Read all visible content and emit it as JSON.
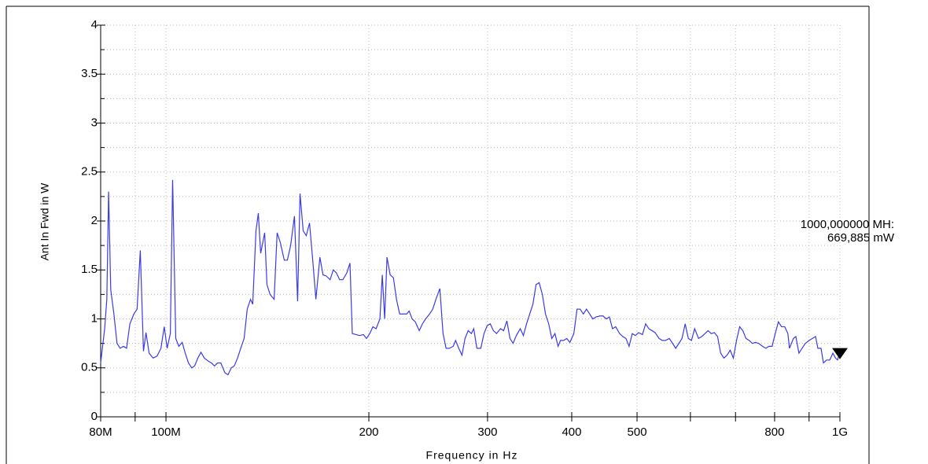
{
  "chart_data": {
    "type": "line",
    "xscale": "log",
    "grid": true,
    "x_label": "Frequency in Hz",
    "y_label": "Ant In Fwd in W",
    "xlim": [
      80,
      1000
    ],
    "ylim": [
      0,
      4
    ],
    "xticks": [
      {
        "value": 80,
        "label": "80M"
      },
      {
        "value": 100,
        "label": "100M"
      },
      200,
      300,
      400,
      500,
      800,
      {
        "value": 1000,
        "label": "1G"
      }
    ],
    "xminorticks": [
      90,
      600,
      700,
      900
    ],
    "yticks": [
      0,
      0.5,
      1,
      1.5,
      2,
      2.5,
      3,
      3.5,
      4
    ],
    "yminorticks": [
      0.25,
      0.75,
      1.25,
      1.75,
      2.25,
      2.75,
      3.25,
      3.75
    ],
    "x": [
      80,
      81.1,
      81.7,
      82.2,
      82.8,
      83.7,
      84.6,
      85.5,
      86.5,
      87.4,
      88.4,
      89.6,
      90.6,
      91.6,
      92.6,
      93.4,
      94.4,
      95.7,
      97.0,
      98.3,
      99.4,
      100.4,
      101.5,
      102.3,
      103.4,
      104.5,
      105.7,
      106.8,
      108.0,
      109.2,
      110.3,
      111.5,
      112.7,
      114.0,
      115.5,
      116.8,
      118.0,
      119.3,
      120.6,
      122.3,
      123.6,
      125.0,
      126.3,
      127.7,
      129.1,
      130.6,
      132.0,
      133.5,
      134.5,
      136.0,
      137.1,
      138.2,
      140.1,
      141.2,
      142.7,
      144.7,
      146.2,
      147.8,
      149.8,
      151.4,
      153.1,
      155.1,
      156.8,
      158.1,
      159.8,
      161.5,
      163.3,
      165.1,
      166.9,
      169.2,
      171.0,
      172.8,
      175.2,
      177.1,
      179.0,
      181.0,
      183.0,
      185.5,
      187.5,
      189.0,
      191.6,
      193.7,
      196.3,
      198.4,
      200.6,
      202.8,
      205.0,
      207.7,
      209.4,
      211.1,
      212.8,
      215.1,
      217.5,
      219.8,
      222.2,
      224.6,
      227.6,
      229.5,
      231.9,
      234.4,
      237.6,
      240.2,
      242.8,
      246.1,
      248.8,
      251.5,
      254.9,
      257.7,
      260.4,
      263.3,
      266.8,
      269.0,
      271.9,
      274.9,
      277.8,
      280.8,
      283.9,
      286.2,
      289.3,
      293.2,
      296.4,
      299.6,
      302.8,
      306.1,
      309.4,
      313.6,
      317.0,
      320.5,
      323.9,
      327.4,
      331.0,
      335.5,
      339.1,
      342.8,
      346.5,
      350.3,
      354.1,
      357.9,
      361.8,
      365.7,
      369.7,
      373.7,
      377.7,
      381.8,
      384.9,
      389.1,
      393.3,
      397.5,
      402.9,
      407.3,
      411.7,
      416.2,
      420.7,
      425.3,
      429.9,
      434.6,
      440.4,
      445.2,
      450.0,
      454.9,
      459.8,
      464.8,
      471.1,
      476.2,
      481.4,
      486.6,
      491.9,
      497.2,
      502.6,
      509.4,
      514.9,
      520.6,
      526.2,
      531.9,
      539.2,
      545.0,
      550.9,
      558.4,
      564.5,
      570.6,
      576.8,
      583.0,
      589.4,
      595.8,
      602.2,
      608.8,
      617.0,
      623.7,
      630.5,
      637.3,
      644.2,
      651.2,
      658.3,
      665.4,
      672.7,
      680.0,
      687.4,
      694.8,
      702.4,
      710.0,
      717.7,
      725.5,
      733.4,
      741.4,
      749.4,
      757.6,
      767.8,
      776.1,
      784.6,
      793.1,
      801.7,
      810.4,
      819.2,
      828.1,
      837.1,
      841.7,
      853.1,
      860.1,
      869.4,
      878.8,
      888.4,
      900.4,
      910.2,
      920.1,
      927.5,
      937.5,
      945.2,
      955.4,
      965.8,
      976.3,
      985,
      992,
      1000
    ],
    "series": [
      {
        "name": "Ant In Fwd",
        "color": "#3b3be6",
        "values": [
          0.55,
          0.9,
          1.2,
          2.3,
          1.3,
          1.05,
          0.75,
          0.7,
          0.72,
          0.7,
          0.95,
          1.05,
          1.1,
          1.7,
          0.67,
          0.86,
          0.65,
          0.6,
          0.62,
          0.7,
          0.92,
          0.7,
          0.85,
          2.42,
          0.8,
          0.72,
          0.76,
          0.65,
          0.55,
          0.5,
          0.52,
          0.6,
          0.66,
          0.6,
          0.57,
          0.55,
          0.52,
          0.55,
          0.55,
          0.45,
          0.43,
          0.5,
          0.52,
          0.6,
          0.7,
          0.8,
          1.1,
          1.2,
          1.15,
          1.9,
          2.08,
          1.67,
          1.88,
          1.35,
          1.25,
          1.2,
          1.88,
          1.78,
          1.6,
          1.6,
          1.75,
          2.05,
          1.18,
          2.28,
          1.9,
          1.85,
          1.98,
          1.6,
          1.2,
          1.63,
          1.45,
          1.44,
          1.4,
          1.5,
          1.47,
          1.4,
          1.4,
          1.47,
          1.57,
          0.85,
          0.84,
          0.83,
          0.84,
          0.8,
          0.85,
          0.92,
          0.9,
          1.0,
          1.45,
          1.0,
          1.63,
          1.45,
          1.42,
          1.2,
          1.05,
          1.05,
          1.05,
          1.08,
          1.0,
          0.97,
          0.88,
          0.95,
          1.0,
          1.05,
          1.1,
          1.2,
          1.31,
          0.85,
          0.7,
          0.7,
          0.72,
          0.78,
          0.7,
          0.63,
          0.8,
          0.88,
          0.85,
          0.9,
          0.7,
          0.7,
          0.85,
          0.93,
          0.95,
          0.88,
          0.85,
          0.9,
          0.88,
          0.98,
          0.8,
          0.75,
          0.83,
          0.9,
          0.83,
          0.95,
          1.05,
          1.15,
          1.35,
          1.37,
          1.25,
          1.05,
          0.95,
          0.8,
          0.85,
          0.72,
          0.78,
          0.78,
          0.8,
          0.76,
          0.85,
          1.1,
          1.1,
          1.05,
          1.1,
          1.05,
          1.0,
          1.02,
          1.03,
          1.03,
          1.0,
          1.02,
          0.9,
          0.92,
          0.85,
          0.82,
          0.8,
          0.72,
          0.85,
          0.83,
          0.86,
          0.84,
          0.95,
          0.9,
          0.88,
          0.86,
          0.8,
          0.78,
          0.78,
          0.8,
          0.75,
          0.7,
          0.75,
          0.8,
          0.95,
          0.8,
          0.78,
          0.9,
          0.8,
          0.82,
          0.85,
          0.88,
          0.85,
          0.86,
          0.82,
          0.65,
          0.6,
          0.63,
          0.68,
          0.6,
          0.78,
          0.92,
          0.88,
          0.8,
          0.78,
          0.75,
          0.76,
          0.75,
          0.72,
          0.7,
          0.72,
          0.72,
          0.85,
          0.97,
          0.92,
          0.92,
          0.85,
          0.7,
          0.8,
          0.82,
          0.65,
          0.7,
          0.75,
          0.78,
          0.8,
          0.82,
          0.7,
          0.7,
          0.55,
          0.58,
          0.58,
          0.65,
          0.6,
          0.58,
          0.67
        ]
      }
    ],
    "marker": {
      "x": 1000,
      "y": 0.669885,
      "color": "#000000",
      "label": [
        "1000,000000 MH:",
        "669,885 mW"
      ]
    }
  }
}
